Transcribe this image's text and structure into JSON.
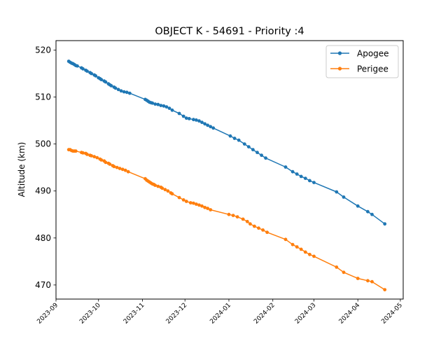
{
  "chart_data": {
    "type": "line",
    "title": "OBJECT K - 54691 - Priority :4",
    "xlabel": "",
    "ylabel": "Altitude (km)",
    "ylim": [
      467,
      522
    ],
    "xlim": [
      "2023-09-01",
      "2024-05-03"
    ],
    "y_ticks": [
      470,
      480,
      490,
      500,
      510,
      520
    ],
    "x_ticks": [
      "2023-09",
      "2023-10",
      "2023-11",
      "2023-12",
      "2024-01",
      "2024-02",
      "2024-03",
      "2024-04",
      "2024-05"
    ],
    "legend_position": "top-right",
    "grid": false,
    "series": [
      {
        "name": "Apogee",
        "color": "#1f77b4",
        "points": [
          [
            "2023-09-10",
            517.6
          ],
          [
            "2023-09-11",
            517.4
          ],
          [
            "2023-09-12",
            517.2
          ],
          [
            "2023-09-13",
            517.1
          ],
          [
            "2023-09-14",
            516.9
          ],
          [
            "2023-09-15",
            516.7
          ],
          [
            "2023-09-16",
            516.6
          ],
          [
            "2023-09-19",
            516.2
          ],
          [
            "2023-09-20",
            516.0
          ],
          [
            "2023-09-22",
            515.7
          ],
          [
            "2023-09-23",
            515.5
          ],
          [
            "2023-09-25",
            515.2
          ],
          [
            "2023-09-26",
            515.0
          ],
          [
            "2023-09-28",
            514.7
          ],
          [
            "2023-09-29",
            514.5
          ],
          [
            "2023-10-01",
            514.1
          ],
          [
            "2023-10-02",
            513.9
          ],
          [
            "2023-10-03",
            513.7
          ],
          [
            "2023-10-05",
            513.4
          ],
          [
            "2023-10-06",
            513.2
          ],
          [
            "2023-10-08",
            512.8
          ],
          [
            "2023-10-09",
            512.6
          ],
          [
            "2023-10-10",
            512.4
          ],
          [
            "2023-10-12",
            512.1
          ],
          [
            "2023-10-13",
            511.9
          ],
          [
            "2023-10-15",
            511.6
          ],
          [
            "2023-10-17",
            511.3
          ],
          [
            "2023-10-19",
            511.1
          ],
          [
            "2023-10-21",
            511.0
          ],
          [
            "2023-10-23",
            510.8
          ],
          [
            "2023-11-03",
            509.5
          ],
          [
            "2023-11-04",
            509.3
          ],
          [
            "2023-11-05",
            509.1
          ],
          [
            "2023-11-06",
            508.9
          ],
          [
            "2023-11-07",
            508.8
          ],
          [
            "2023-11-08",
            508.7
          ],
          [
            "2023-11-10",
            508.5
          ],
          [
            "2023-11-12",
            508.4
          ],
          [
            "2023-11-14",
            508.2
          ],
          [
            "2023-11-16",
            508.1
          ],
          [
            "2023-11-18",
            507.9
          ],
          [
            "2023-11-20",
            507.6
          ],
          [
            "2023-11-22",
            507.2
          ],
          [
            "2023-11-27",
            506.5
          ],
          [
            "2023-11-30",
            505.9
          ],
          [
            "2023-12-02",
            505.5
          ],
          [
            "2023-12-04",
            505.4
          ],
          [
            "2023-12-07",
            505.2
          ],
          [
            "2023-12-09",
            505.1
          ],
          [
            "2023-12-11",
            504.9
          ],
          [
            "2023-12-13",
            504.6
          ],
          [
            "2023-12-15",
            504.3
          ],
          [
            "2023-12-17",
            504.0
          ],
          [
            "2023-12-19",
            503.7
          ],
          [
            "2023-12-21",
            503.4
          ],
          [
            "2024-01-02",
            501.7
          ],
          [
            "2024-01-05",
            501.2
          ],
          [
            "2024-01-08",
            500.8
          ],
          [
            "2024-01-12",
            500.0
          ],
          [
            "2024-01-15",
            499.4
          ],
          [
            "2024-01-18",
            498.8
          ],
          [
            "2024-01-21",
            498.2
          ],
          [
            "2024-01-24",
            497.6
          ],
          [
            "2024-01-27",
            497.0
          ],
          [
            "2024-02-10",
            495.1
          ],
          [
            "2024-02-15",
            494.1
          ],
          [
            "2024-02-18",
            493.6
          ],
          [
            "2024-02-21",
            493.1
          ],
          [
            "2024-02-24",
            492.7
          ],
          [
            "2024-02-27",
            492.2
          ],
          [
            "2024-03-01",
            491.8
          ],
          [
            "2024-03-17",
            489.8
          ],
          [
            "2024-03-22",
            488.7
          ],
          [
            "2024-04-01",
            486.8
          ],
          [
            "2024-04-08",
            485.6
          ],
          [
            "2024-04-11",
            485.0
          ],
          [
            "2024-04-20",
            483.0
          ]
        ]
      },
      {
        "name": "Perigee",
        "color": "#ff7f0e",
        "points": [
          [
            "2023-09-10",
            498.8
          ],
          [
            "2023-09-11",
            498.8
          ],
          [
            "2023-09-12",
            498.6
          ],
          [
            "2023-09-13",
            498.5
          ],
          [
            "2023-09-14",
            498.5
          ],
          [
            "2023-09-15",
            498.5
          ],
          [
            "2023-09-19",
            498.2
          ],
          [
            "2023-09-20",
            498.1
          ],
          [
            "2023-09-22",
            498.0
          ],
          [
            "2023-09-23",
            497.8
          ],
          [
            "2023-09-25",
            497.6
          ],
          [
            "2023-09-26",
            497.5
          ],
          [
            "2023-09-28",
            497.3
          ],
          [
            "2023-09-30",
            497.1
          ],
          [
            "2023-10-02",
            496.8
          ],
          [
            "2023-10-03",
            496.6
          ],
          [
            "2023-10-05",
            496.4
          ],
          [
            "2023-10-06",
            496.1
          ],
          [
            "2023-10-08",
            495.9
          ],
          [
            "2023-10-09",
            495.7
          ],
          [
            "2023-10-11",
            495.4
          ],
          [
            "2023-10-12",
            495.2
          ],
          [
            "2023-10-14",
            495.0
          ],
          [
            "2023-10-16",
            494.8
          ],
          [
            "2023-10-18",
            494.6
          ],
          [
            "2023-10-20",
            494.4
          ],
          [
            "2023-10-22",
            494.1
          ],
          [
            "2023-11-03",
            492.6
          ],
          [
            "2023-11-04",
            492.3
          ],
          [
            "2023-11-05",
            492.1
          ],
          [
            "2023-11-06",
            491.9
          ],
          [
            "2023-11-07",
            491.7
          ],
          [
            "2023-11-08",
            491.5
          ],
          [
            "2023-11-09",
            491.4
          ],
          [
            "2023-11-10",
            491.2
          ],
          [
            "2023-11-12",
            491.0
          ],
          [
            "2023-11-14",
            490.8
          ],
          [
            "2023-11-15",
            490.6
          ],
          [
            "2023-11-17",
            490.3
          ],
          [
            "2023-11-19",
            490.0
          ],
          [
            "2023-11-21",
            489.6
          ],
          [
            "2023-11-22",
            489.4
          ],
          [
            "2023-11-27",
            488.6
          ],
          [
            "2023-11-30",
            488.1
          ],
          [
            "2023-12-02",
            487.8
          ],
          [
            "2023-12-05",
            487.5
          ],
          [
            "2023-12-07",
            487.4
          ],
          [
            "2023-12-09",
            487.2
          ],
          [
            "2023-12-11",
            487.0
          ],
          [
            "2023-12-13",
            486.8
          ],
          [
            "2023-12-15",
            486.5
          ],
          [
            "2023-12-17",
            486.3
          ],
          [
            "2023-12-19",
            486.0
          ],
          [
            "2024-01-01",
            485.0
          ],
          [
            "2024-01-04",
            484.8
          ],
          [
            "2024-01-07",
            484.5
          ],
          [
            "2024-01-11",
            484.0
          ],
          [
            "2024-01-14",
            483.5
          ],
          [
            "2024-01-16",
            483.0
          ],
          [
            "2024-01-19",
            482.5
          ],
          [
            "2024-01-22",
            482.1
          ],
          [
            "2024-01-25",
            481.7
          ],
          [
            "2024-01-28",
            481.2
          ],
          [
            "2024-02-10",
            479.7
          ],
          [
            "2024-02-15",
            478.6
          ],
          [
            "2024-02-18",
            478.1
          ],
          [
            "2024-02-21",
            477.6
          ],
          [
            "2024-02-24",
            477.0
          ],
          [
            "2024-02-27",
            476.5
          ],
          [
            "2024-03-01",
            476.1
          ],
          [
            "2024-03-17",
            473.8
          ],
          [
            "2024-03-22",
            472.7
          ],
          [
            "2024-04-01",
            471.4
          ],
          [
            "2024-04-08",
            470.9
          ],
          [
            "2024-04-11",
            470.7
          ],
          [
            "2024-04-20",
            469.0
          ]
        ]
      }
    ]
  }
}
